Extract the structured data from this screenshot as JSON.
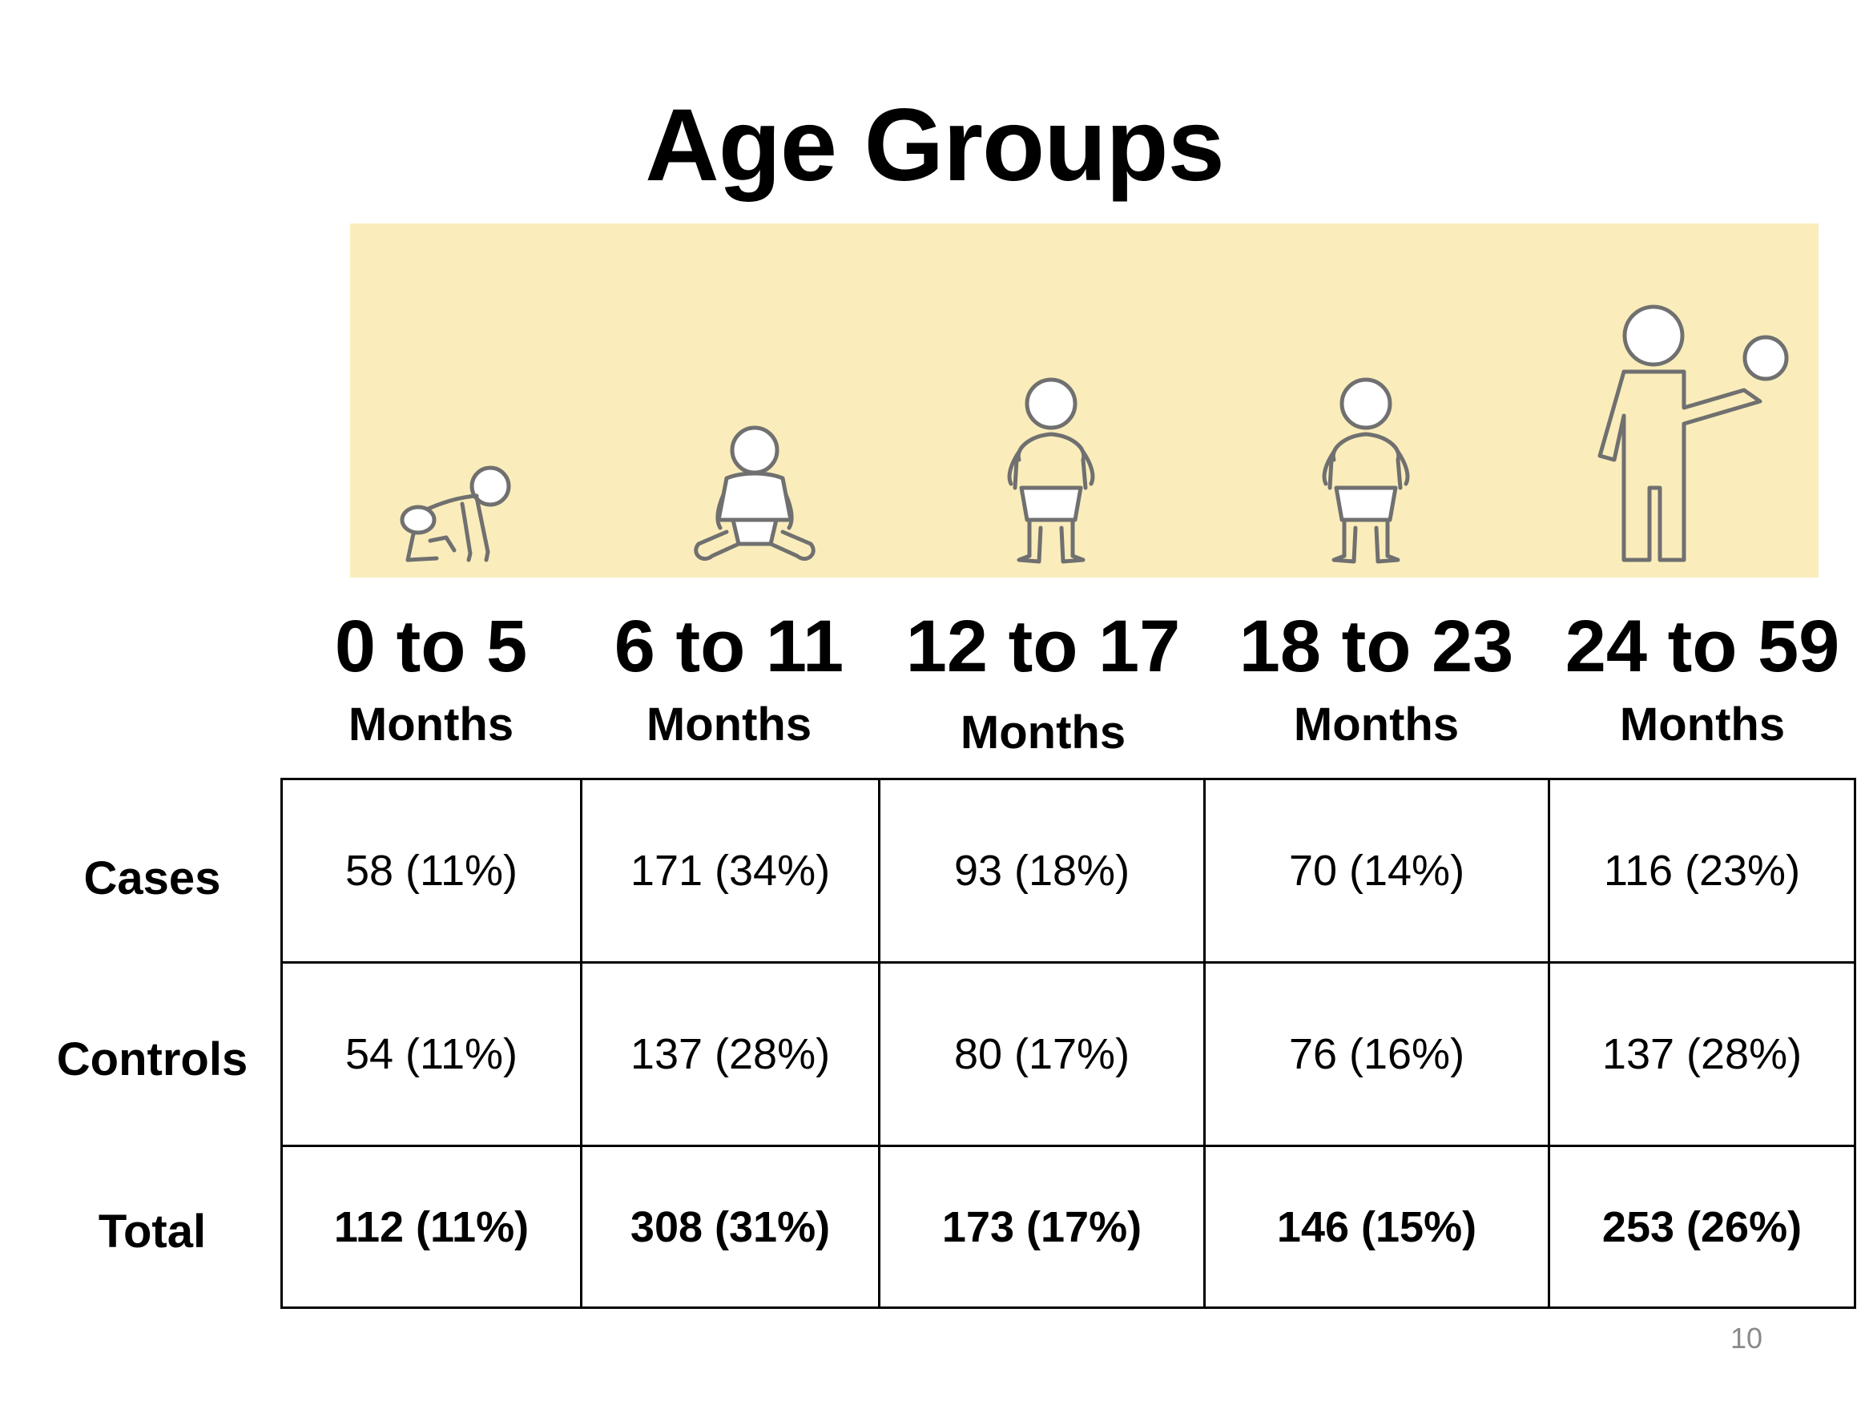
{
  "title": "Age Groups",
  "age_groups": [
    {
      "range": "0 to 5",
      "unit": "Months"
    },
    {
      "range": "6 to 11",
      "unit": "Months"
    },
    {
      "range": "12 to 17",
      "unit": "Months"
    },
    {
      "range": "18 to 23",
      "unit": "Months"
    },
    {
      "range": "24 to 59",
      "unit": "Months"
    }
  ],
  "table": {
    "rows": [
      {
        "label": "Cases",
        "values": [
          "58 (11%)",
          "171 (34%)",
          "93 (18%)",
          "70 (14%)",
          "116 (23%)"
        ]
      },
      {
        "label": "Controls",
        "values": [
          "54 (11%)",
          "137 (28%)",
          "80 (17%)",
          "76 (16%)",
          "137 (28%)"
        ]
      },
      {
        "label": "Total",
        "values": [
          "112 (11%)",
          "308 (31%)",
          "173 (17%)",
          "146 (15%)",
          "253 (26%)"
        ]
      }
    ]
  },
  "page_number": "10",
  "colors": {
    "banner": "#faedbb",
    "figure_stroke": "#707070"
  },
  "icons": [
    "crawling-baby-icon",
    "sitting-baby-icon",
    "standing-toddler-icon",
    "standing-toddler-icon",
    "child-with-ball-icon"
  ]
}
